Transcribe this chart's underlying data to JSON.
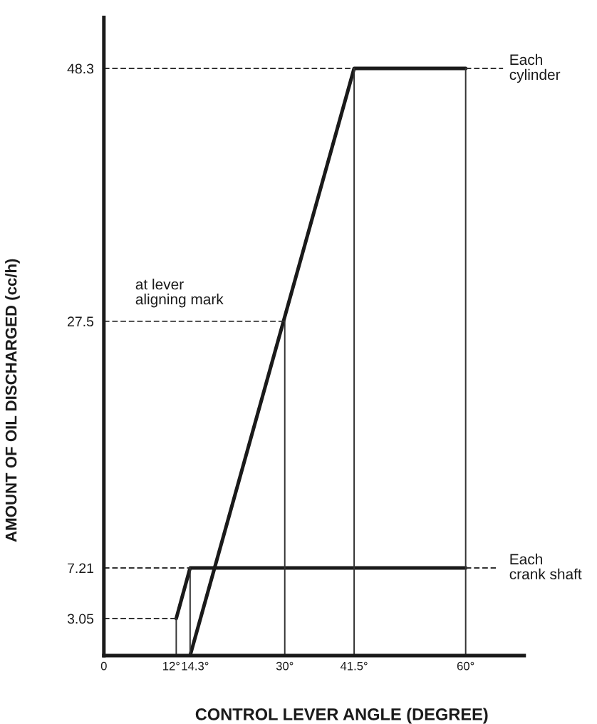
{
  "chart_data": {
    "type": "line",
    "xlabel": "CONTROL LEVER ANGLE (DEGREE)",
    "ylabel": "AMOUNT OF OIL DISCHARGED (cc/h)",
    "xlim": [
      0,
      69.7
    ],
    "ylim": [
      0,
      52.5
    ],
    "xticks": [
      0,
      {
        "value": 12,
        "label": "12°"
      },
      {
        "value": 14.3,
        "label": "14.3°"
      },
      {
        "value": 30,
        "label": "30°"
      },
      {
        "value": 41.5,
        "label": "41.5°"
      },
      {
        "value": 60,
        "label": "60°"
      }
    ],
    "yticks": [
      3.05,
      7.21,
      27.5,
      48.3
    ],
    "grid": false,
    "legend": false,
    "marker": "none",
    "line_style": "solid",
    "series": [
      {
        "name": "Each cylinder",
        "color": "#1a1a1a",
        "x": [
          14.3,
          41.5,
          60
        ],
        "values": [
          0,
          48.3,
          48.3
        ]
      },
      {
        "name": "Each crank shaft",
        "color": "#1a1a1a",
        "x": [
          12,
          14.3,
          60
        ],
        "values": [
          3.05,
          7.21,
          7.21
        ]
      },
      {
        "color": "#333333",
        "line_style": "dashed",
        "x": [
          0,
          41.5
        ],
        "values": [
          48.3,
          48.3
        ]
      },
      {
        "color": "#333333",
        "line_style": "dashed",
        "x": [
          60,
          66.2
        ],
        "values": [
          48.3,
          48.3
        ]
      },
      {
        "color": "#333333",
        "line_style": "dashed",
        "x": [
          0,
          30
        ],
        "values": [
          27.5,
          27.5
        ]
      },
      {
        "color": "#333333",
        "line_style": "dashed",
        "x": [
          0,
          14.3
        ],
        "values": [
          7.21,
          7.21
        ]
      },
      {
        "color": "#333333",
        "line_style": "dashed",
        "x": [
          60,
          65
        ],
        "values": [
          7.21,
          7.21
        ]
      },
      {
        "color": "#333333",
        "line_style": "dashed",
        "x": [
          0,
          12
        ],
        "values": [
          3.05,
          3.05
        ]
      },
      {
        "color": "#333333",
        "x": [
          12,
          12
        ],
        "values": [
          0,
          3.05
        ]
      },
      {
        "color": "#333333",
        "x": [
          14.3,
          14.3
        ],
        "values": [
          0,
          7.21
        ]
      },
      {
        "color": "#333333",
        "x": [
          30,
          30
        ],
        "values": [
          0,
          27.5
        ]
      },
      {
        "color": "#333333",
        "x": [
          41.5,
          41.5
        ],
        "values": [
          0,
          48.3
        ]
      },
      {
        "color": "#333333",
        "x": [
          60,
          60
        ],
        "values": [
          0,
          48.3
        ]
      }
    ],
    "annotations": [
      {
        "text": "at lever\naligning mark",
        "x": 5.2,
        "y": 27.5
      }
    ]
  }
}
